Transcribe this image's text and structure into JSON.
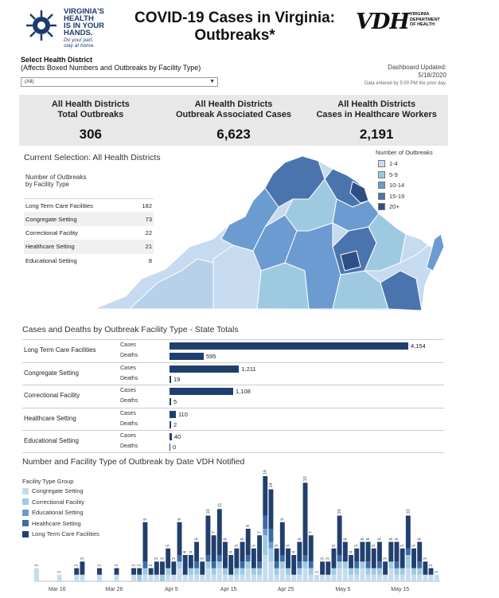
{
  "header": {
    "logo_lines": [
      "VIRGINIA'S",
      "HEALTH",
      "IS IN YOUR",
      "HANDS."
    ],
    "logo_sub": [
      "Do your part,",
      "stay at home."
    ],
    "title_line1": "COVID-19 Cases in Virginia:",
    "title_line2": "Outbreaks*",
    "vdh_mark": "VDH",
    "vdh_lines": [
      "VIRGINIA",
      "DEPARTMENT",
      "OF HEALTH"
    ]
  },
  "filter": {
    "label": "Select Health District",
    "sublabel": "(Affects Boxed Numbers and Outbreaks by Facility Type)",
    "selected": "(All)"
  },
  "updated": {
    "label": "Dashboard Updated:",
    "date": "5/18/2020",
    "note": "Data entered by 5:00 PM the prior day."
  },
  "kpis": [
    {
      "line1": "All Health Districts",
      "line2": "Total Outbreaks",
      "value": "306"
    },
    {
      "line1": "All Health Districts",
      "line2": "Outbreak Associated Cases",
      "value": "6,623"
    },
    {
      "line1": "All Health Districts",
      "line2": "Cases in Healthcare Workers",
      "value": "2,191"
    }
  ],
  "selection_title": "Current Selection: All Health Districts",
  "facility_table": {
    "heading1": "Number of Outbreaks",
    "heading2": "by Facility Type",
    "rows": [
      {
        "name": "Long Term Care Facilities",
        "value": "182"
      },
      {
        "name": "Congregate Setting",
        "value": "73"
      },
      {
        "name": "Correctional Facility",
        "value": "22"
      },
      {
        "name": "Healthcare Setting",
        "value": "21"
      },
      {
        "name": "Educational Setting",
        "value": "8"
      }
    ]
  },
  "map_legend": {
    "title": "Number of Outbreaks",
    "items": [
      {
        "label": "1-4",
        "color": "#c6dbef"
      },
      {
        "label": "5-9",
        "color": "#9ecae1"
      },
      {
        "label": "10-14",
        "color": "#6b9bd0"
      },
      {
        "label": "15-19",
        "color": "#4a74ad"
      },
      {
        "label": "20+",
        "color": "#2e4f86"
      }
    ]
  },
  "cases_deaths": {
    "title": "Cases and Deaths by Outbreak Facility Type - State Totals",
    "cases_label": "Cases",
    "deaths_label": "Deaths",
    "bar_color": "#213f6e",
    "groups": [
      {
        "name": "Long Term Care Facilities",
        "cases": 4154,
        "cases_text": "4,154",
        "deaths": 595,
        "deaths_text": "595"
      },
      {
        "name": "Congregate Setting",
        "cases": 1211,
        "cases_text": "1,211",
        "deaths": 19,
        "deaths_text": "19"
      },
      {
        "name": "Correctional Facility",
        "cases": 1108,
        "cases_text": "1,108",
        "deaths": 5,
        "deaths_text": "5"
      },
      {
        "name": "Healthcare Setting",
        "cases": 110,
        "cases_text": "110",
        "deaths": 2,
        "deaths_text": "2"
      },
      {
        "name": "Educational Setting",
        "cases": 40,
        "cases_text": "40",
        "deaths": 0,
        "deaths_text": "0"
      }
    ]
  },
  "timeline_title": "Number and Facility Type of Outbreak by Date VDH Notified",
  "chart_data": {
    "type": "bar",
    "stacked": true,
    "legend_title": "Facility Type Group",
    "legend_position": "top-left",
    "x_tick_labels": [
      "Mar 16",
      "Mar 26",
      "Apr 5",
      "Apr 15",
      "Apr 25",
      "May 5",
      "May 15"
    ],
    "series": [
      {
        "name": "Congregate Setting",
        "color": "#c6dbef"
      },
      {
        "name": "Correctional Facility",
        "color": "#9ecae1"
      },
      {
        "name": "Educational Setting",
        "color": "#6b9bd0"
      },
      {
        "name": "Healthcare Setting",
        "color": "#3d6aa8"
      },
      {
        "name": "Long Term Care Facilities",
        "color": "#213f6e"
      }
    ],
    "ymax": 16,
    "days": [
      {
        "total": 2,
        "parts": [
          2,
          0,
          0,
          0,
          0
        ]
      },
      {
        "total": 0,
        "parts": [
          0,
          0,
          0,
          0,
          0
        ]
      },
      {
        "total": 0,
        "parts": [
          0,
          0,
          0,
          0,
          0
        ]
      },
      {
        "total": 0,
        "parts": [
          0,
          0,
          0,
          0,
          0
        ]
      },
      {
        "total": 1,
        "parts": [
          1,
          0,
          0,
          0,
          0
        ]
      },
      {
        "total": 0,
        "parts": [
          0,
          0,
          0,
          0,
          0
        ]
      },
      {
        "total": 0,
        "parts": [
          0,
          0,
          0,
          0,
          0
        ]
      },
      {
        "total": 2,
        "parts": [
          1,
          0,
          0,
          0,
          1
        ]
      },
      {
        "total": 3,
        "parts": [
          1,
          0,
          0,
          0,
          2
        ]
      },
      {
        "total": 0,
        "parts": [
          0,
          0,
          0,
          0,
          0
        ]
      },
      {
        "total": 0,
        "parts": [
          0,
          0,
          0,
          0,
          0
        ]
      },
      {
        "total": 2,
        "parts": [
          1,
          0,
          0,
          0,
          1
        ]
      },
      {
        "total": 0,
        "parts": [
          0,
          0,
          0,
          0,
          0
        ]
      },
      {
        "total": 0,
        "parts": [
          0,
          0,
          0,
          0,
          0
        ]
      },
      {
        "total": 2,
        "parts": [
          1,
          0,
          0,
          0,
          1
        ]
      },
      {
        "total": 0,
        "parts": [
          0,
          0,
          0,
          0,
          0
        ]
      },
      {
        "total": 0,
        "parts": [
          0,
          0,
          0,
          0,
          0
        ]
      },
      {
        "total": 2,
        "parts": [
          1,
          0,
          0,
          0,
          1
        ]
      },
      {
        "total": 2,
        "parts": [
          0,
          1,
          0,
          0,
          1
        ]
      },
      {
        "total": 9,
        "parts": [
          1,
          1,
          0,
          1,
          6
        ]
      },
      {
        "total": 2,
        "parts": [
          1,
          0,
          0,
          0,
          1
        ]
      },
      {
        "total": 3,
        "parts": [
          1,
          0,
          0,
          0,
          2
        ]
      },
      {
        "total": 3,
        "parts": [
          0,
          1,
          0,
          0,
          2
        ]
      },
      {
        "total": 5,
        "parts": [
          1,
          1,
          0,
          0,
          3
        ]
      },
      {
        "total": 3,
        "parts": [
          1,
          0,
          0,
          0,
          2
        ]
      },
      {
        "total": 9,
        "parts": [
          2,
          1,
          0,
          1,
          5
        ]
      },
      {
        "total": 4,
        "parts": [
          1,
          0,
          0,
          0,
          3
        ]
      },
      {
        "total": 4,
        "parts": [
          1,
          1,
          0,
          0,
          2
        ]
      },
      {
        "total": 6,
        "parts": [
          1,
          1,
          0,
          1,
          3
        ]
      },
      {
        "total": 3,
        "parts": [
          1,
          0,
          0,
          0,
          2
        ]
      },
      {
        "total": 10,
        "parts": [
          2,
          1,
          0,
          1,
          6
        ]
      },
      {
        "total": 7,
        "parts": [
          1,
          1,
          0,
          1,
          4
        ]
      },
      {
        "total": 11,
        "parts": [
          2,
          1,
          0,
          1,
          7
        ]
      },
      {
        "total": 6,
        "parts": [
          1,
          1,
          0,
          0,
          4
        ]
      },
      {
        "total": 4,
        "parts": [
          1,
          0,
          0,
          0,
          3
        ]
      },
      {
        "total": 5,
        "parts": [
          1,
          1,
          0,
          0,
          3
        ]
      },
      {
        "total": 6,
        "parts": [
          1,
          1,
          0,
          1,
          3
        ]
      },
      {
        "total": 8,
        "parts": [
          2,
          1,
          0,
          1,
          4
        ]
      },
      {
        "total": 5,
        "parts": [
          1,
          1,
          0,
          0,
          3
        ]
      },
      {
        "total": 7,
        "parts": [
          1,
          1,
          0,
          1,
          4
        ]
      },
      {
        "total": 16,
        "parts": [
          4,
          3,
          1,
          2,
          6
        ]
      },
      {
        "total": 14,
        "parts": [
          3,
          2,
          1,
          2,
          6
        ]
      },
      {
        "total": 5,
        "parts": [
          1,
          1,
          0,
          1,
          2
        ]
      },
      {
        "total": 9,
        "parts": [
          2,
          1,
          0,
          1,
          5
        ]
      },
      {
        "total": 5,
        "parts": [
          1,
          1,
          0,
          0,
          3
        ]
      },
      {
        "total": 4,
        "parts": [
          1,
          0,
          0,
          0,
          3
        ]
      },
      {
        "total": 6,
        "parts": [
          1,
          1,
          0,
          1,
          3
        ]
      },
      {
        "total": 15,
        "parts": [
          2,
          1,
          0,
          1,
          11
        ]
      },
      {
        "total": 7,
        "parts": [
          1,
          1,
          0,
          1,
          4
        ]
      },
      {
        "total": 1,
        "parts": [
          1,
          0,
          0,
          0,
          0
        ]
      },
      {
        "total": 3,
        "parts": [
          1,
          0,
          0,
          0,
          2
        ]
      },
      {
        "total": 3,
        "parts": [
          1,
          0,
          0,
          0,
          2
        ]
      },
      {
        "total": 5,
        "parts": [
          1,
          1,
          0,
          0,
          3
        ]
      },
      {
        "total": 10,
        "parts": [
          2,
          1,
          0,
          1,
          6
        ]
      },
      {
        "total": 6,
        "parts": [
          2,
          1,
          0,
          0,
          3
        ]
      },
      {
        "total": 4,
        "parts": [
          1,
          1,
          0,
          0,
          2
        ]
      },
      {
        "total": 5,
        "parts": [
          1,
          1,
          0,
          1,
          2
        ]
      },
      {
        "total": 6,
        "parts": [
          2,
          1,
          0,
          0,
          3
        ]
      },
      {
        "total": 6,
        "parts": [
          1,
          1,
          0,
          1,
          3
        ]
      },
      {
        "total": 5,
        "parts": [
          1,
          1,
          0,
          0,
          3
        ]
      },
      {
        "total": 6,
        "parts": [
          1,
          1,
          0,
          1,
          3
        ]
      },
      {
        "total": 3,
        "parts": [
          1,
          0,
          0,
          0,
          2
        ]
      },
      {
        "total": 6,
        "parts": [
          2,
          1,
          0,
          0,
          3
        ]
      },
      {
        "total": 6,
        "parts": [
          1,
          1,
          0,
          1,
          3
        ]
      },
      {
        "total": 5,
        "parts": [
          1,
          1,
          0,
          0,
          3
        ]
      },
      {
        "total": 10,
        "parts": [
          2,
          2,
          0,
          1,
          5
        ]
      },
      {
        "total": 5,
        "parts": [
          1,
          1,
          0,
          0,
          3
        ]
      },
      {
        "total": 6,
        "parts": [
          1,
          1,
          0,
          1,
          3
        ]
      },
      {
        "total": 3,
        "parts": [
          1,
          0,
          0,
          0,
          2
        ]
      },
      {
        "total": 2,
        "parts": [
          1,
          0,
          0,
          0,
          1
        ]
      },
      {
        "total": 1,
        "parts": [
          1,
          0,
          0,
          0,
          0
        ]
      }
    ]
  }
}
